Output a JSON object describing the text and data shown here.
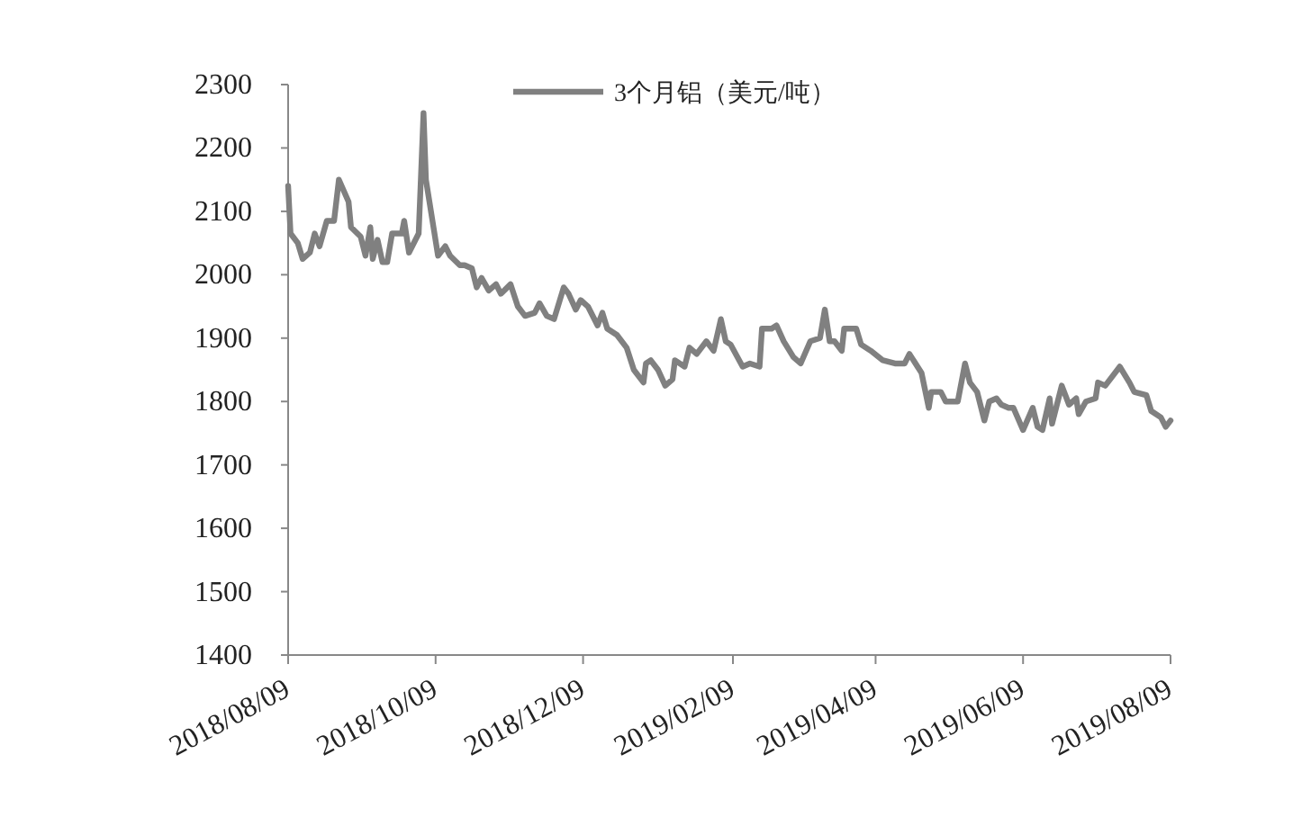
{
  "chart_data": {
    "type": "line",
    "x": [
      "2018-08-09",
      "2018-08-10",
      "2018-08-13",
      "2018-08-15",
      "2018-08-18",
      "2018-08-20",
      "2018-08-22",
      "2018-08-25",
      "2018-08-28",
      "2018-08-30",
      "2018-09-03",
      "2018-09-04",
      "2018-09-08",
      "2018-09-10",
      "2018-09-12",
      "2018-09-13",
      "2018-09-15",
      "2018-09-17",
      "2018-09-19",
      "2018-09-21",
      "2018-09-25",
      "2018-09-26",
      "2018-09-28",
      "2018-10-02",
      "2018-10-04",
      "2018-10-05",
      "2018-10-10",
      "2018-10-13",
      "2018-10-15",
      "2018-10-19",
      "2018-10-21",
      "2018-10-24",
      "2018-10-26",
      "2018-10-28",
      "2018-10-31",
      "2018-11-03",
      "2018-11-05",
      "2018-11-09",
      "2018-11-12",
      "2018-11-15",
      "2018-11-19",
      "2018-11-21",
      "2018-11-24",
      "2018-11-27",
      "2018-12-01",
      "2018-12-03",
      "2018-12-06",
      "2018-12-08",
      "2018-12-11",
      "2018-12-15",
      "2018-12-17",
      "2018-12-19",
      "2018-12-23",
      "2018-12-27",
      "2018-12-30",
      "2019-01-03",
      "2019-01-04",
      "2019-01-06",
      "2019-01-09",
      "2019-01-12",
      "2019-01-15",
      "2019-01-16",
      "2019-01-20",
      "2019-01-22",
      "2019-01-25",
      "2019-01-29",
      "2019-02-01",
      "2019-02-04",
      "2019-02-06",
      "2019-02-08",
      "2019-02-13",
      "2019-02-16",
      "2019-02-20",
      "2019-02-21",
      "2019-02-25",
      "2019-02-27",
      "2019-03-02",
      "2019-03-06",
      "2019-03-09",
      "2019-03-13",
      "2019-03-17",
      "2019-03-19",
      "2019-03-21",
      "2019-03-23",
      "2019-03-26",
      "2019-03-27",
      "2019-04-01",
      "2019-04-03",
      "2019-04-07",
      "2019-04-12",
      "2019-04-17",
      "2019-04-21",
      "2019-04-23",
      "2019-04-28",
      "2019-05-01",
      "2019-05-02",
      "2019-05-06",
      "2019-05-08",
      "2019-05-13",
      "2019-05-16",
      "2019-05-18",
      "2019-05-21",
      "2019-05-24",
      "2019-05-26",
      "2019-05-29",
      "2019-05-31",
      "2019-06-03",
      "2019-06-05",
      "2019-06-09",
      "2019-06-13",
      "2019-06-15",
      "2019-06-17",
      "2019-06-20",
      "2019-06-21",
      "2019-06-25",
      "2019-06-28",
      "2019-07-01",
      "2019-07-02",
      "2019-07-05",
      "2019-07-09",
      "2019-07-10",
      "2019-07-13",
      "2019-07-19",
      "2019-07-23",
      "2019-07-25",
      "2019-07-30",
      "2019-08-01",
      "2019-08-05",
      "2019-08-07",
      "2019-08-09"
    ],
    "series": [
      {
        "name": "3个月铝（美元/吨）",
        "color": "#808080",
        "values": [
          2140,
          2065,
          2050,
          2025,
          2035,
          2065,
          2045,
          2085,
          2085,
          2150,
          2115,
          2075,
          2060,
          2030,
          2075,
          2025,
          2055,
          2020,
          2020,
          2065,
          2065,
          2085,
          2035,
          2065,
          2255,
          2150,
          2030,
          2045,
          2030,
          2015,
          2015,
          2010,
          1980,
          1995,
          1975,
          1985,
          1970,
          1985,
          1950,
          1935,
          1940,
          1955,
          1935,
          1930,
          1980,
          1970,
          1945,
          1960,
          1950,
          1920,
          1940,
          1915,
          1905,
          1885,
          1850,
          1830,
          1860,
          1865,
          1850,
          1825,
          1835,
          1865,
          1855,
          1885,
          1875,
          1895,
          1880,
          1930,
          1895,
          1890,
          1855,
          1860,
          1855,
          1915,
          1915,
          1920,
          1895,
          1870,
          1860,
          1895,
          1900,
          1945,
          1895,
          1895,
          1880,
          1915,
          1915,
          1890,
          1880,
          1865,
          1860,
          1860,
          1875,
          1845,
          1790,
          1815,
          1815,
          1800,
          1800,
          1860,
          1830,
          1815,
          1770,
          1800,
          1805,
          1795,
          1790,
          1790,
          1755,
          1790,
          1760,
          1755,
          1805,
          1765,
          1825,
          1795,
          1805,
          1780,
          1800,
          1805,
          1830,
          1825,
          1855,
          1830,
          1815,
          1810,
          1785,
          1775,
          1760,
          1770
        ]
      }
    ],
    "xlim": [
      "2018-08-09",
      "2019-08-09"
    ],
    "xticks": [
      {
        "value": "2018-08-09",
        "label": "2018/08/09"
      },
      {
        "value": "2018-10-09",
        "label": "2018/10/09"
      },
      {
        "value": "2018-12-09",
        "label": "2018/12/09"
      },
      {
        "value": "2019-02-09",
        "label": "2019/02/09"
      },
      {
        "value": "2019-04-09",
        "label": "2019/04/09"
      },
      {
        "value": "2019-06-09",
        "label": "2019/06/09"
      },
      {
        "value": "2019-08-09",
        "label": "2019/08/09"
      }
    ],
    "ylim": [
      1400,
      2300
    ],
    "yticks": [
      1400,
      1500,
      1600,
      1700,
      1800,
      1900,
      2000,
      2100,
      2200,
      2300
    ],
    "grid": false,
    "legend": "top",
    "line_style": "solid",
    "marker": "none"
  }
}
